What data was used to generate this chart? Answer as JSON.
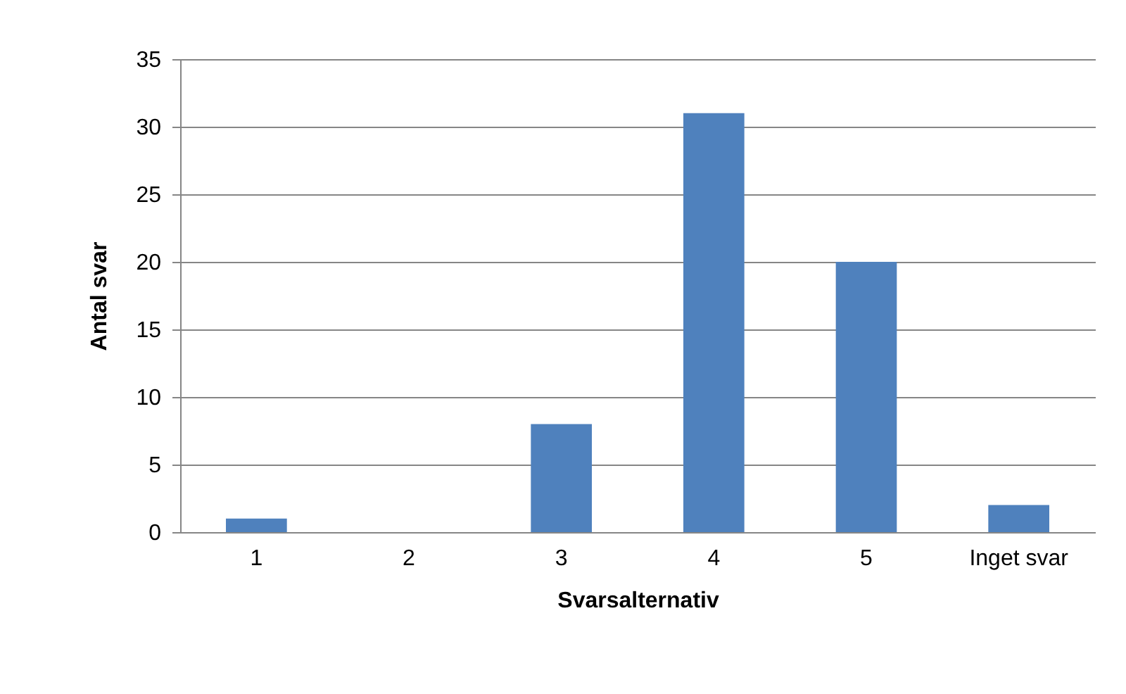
{
  "chart_data": {
    "type": "bar",
    "xlabel": "Svarsalternativ",
    "ylabel": "Antal svar",
    "categories": [
      "1",
      "2",
      "3",
      "4",
      "5",
      "Inget svar"
    ],
    "values": [
      1,
      0,
      8,
      31,
      20,
      2
    ],
    "color": "#4f81bd",
    "ylim": [
      0,
      35
    ],
    "yticks": [
      0,
      5,
      10,
      15,
      20,
      25,
      30,
      35
    ],
    "grid": "y"
  }
}
